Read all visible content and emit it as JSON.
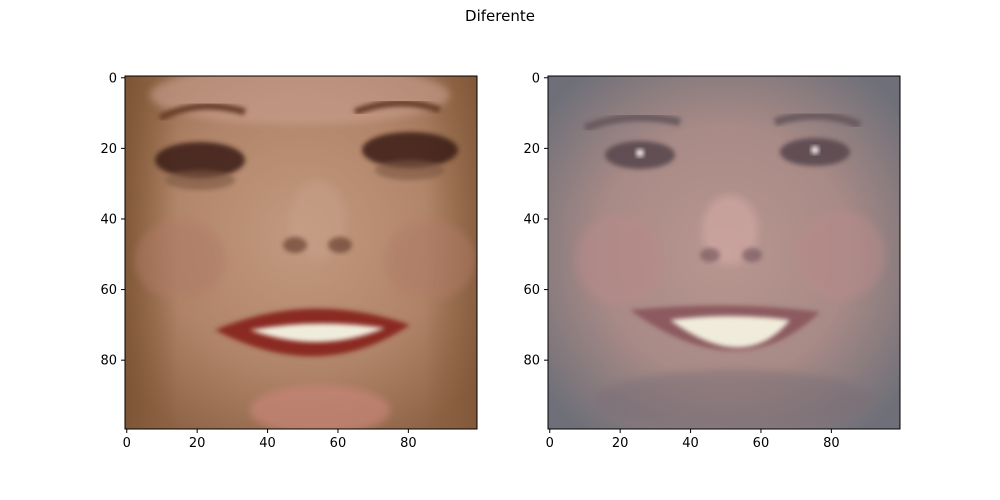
{
  "figure": {
    "title": "Diferente"
  },
  "panels": [
    {
      "name": "left-face",
      "x_ticks": [
        "0",
        "20",
        "40",
        "60",
        "80"
      ],
      "y_ticks": [
        "0",
        "20",
        "40",
        "60",
        "80"
      ],
      "image_size": [
        100,
        100
      ]
    },
    {
      "name": "right-face",
      "x_ticks": [
        "0",
        "20",
        "40",
        "60",
        "80"
      ],
      "y_ticks": [
        "0",
        "20",
        "40",
        "60",
        "80"
      ],
      "image_size": [
        100,
        100
      ]
    }
  ],
  "colors": {
    "left_skin": "#b08468",
    "left_bg": "#8c6448",
    "left_lips": "#8a2a22",
    "right_skin": "#a88a86",
    "right_bg": "#6e6f78",
    "teeth": "#f0ecdc"
  }
}
